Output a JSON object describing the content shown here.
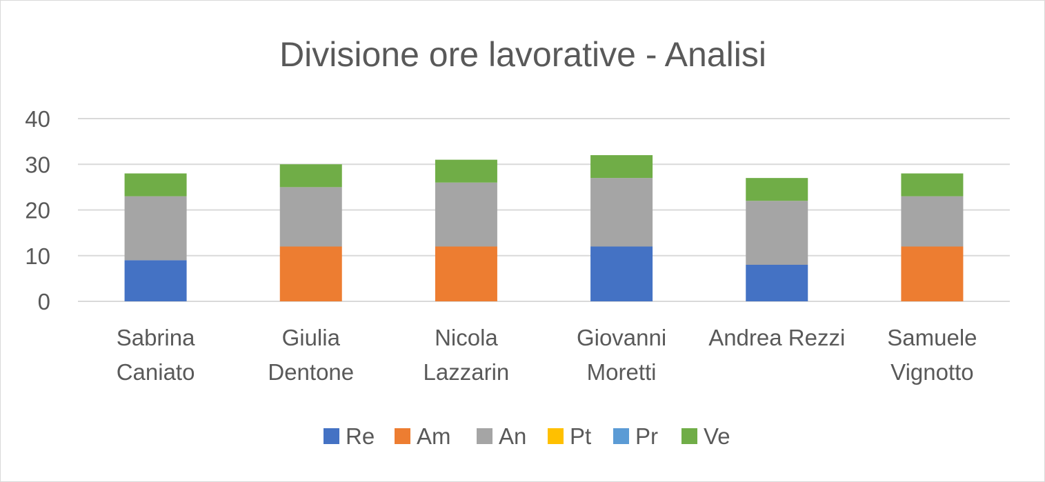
{
  "chart_data": {
    "type": "bar",
    "stacked": true,
    "title": "Divisione ore lavorative - Analisi",
    "xlabel": "",
    "ylabel": "",
    "ylim": [
      0,
      40
    ],
    "yticks": [
      "0",
      "10",
      "20",
      "30",
      "40"
    ],
    "grid": true,
    "legend_position": "bottom",
    "categories": [
      [
        "Sabrina",
        "Caniato"
      ],
      [
        "Giulia",
        "Dentone"
      ],
      [
        "Nicola",
        "Lazzarin"
      ],
      [
        "Giovanni",
        "Moretti"
      ],
      [
        "Andrea Rezzi"
      ],
      [
        "Samuele",
        "Vignotto"
      ]
    ],
    "series": [
      {
        "name": "Re",
        "color": "#4472c4",
        "values": [
          9,
          0,
          0,
          12,
          8,
          0
        ]
      },
      {
        "name": "Am",
        "color": "#ed7d31",
        "values": [
          0,
          12,
          12,
          0,
          0,
          12
        ]
      },
      {
        "name": "An",
        "color": "#a5a5a5",
        "values": [
          14,
          13,
          14,
          15,
          14,
          11
        ]
      },
      {
        "name": "Pt",
        "color": "#ffc000",
        "values": [
          0,
          0,
          0,
          0,
          0,
          0
        ]
      },
      {
        "name": "Pr",
        "color": "#5b9bd5",
        "values": [
          0,
          0,
          0,
          0,
          0,
          0
        ]
      },
      {
        "name": "Ve",
        "color": "#70ad47",
        "values": [
          5,
          5,
          5,
          5,
          5,
          5
        ]
      }
    ]
  }
}
